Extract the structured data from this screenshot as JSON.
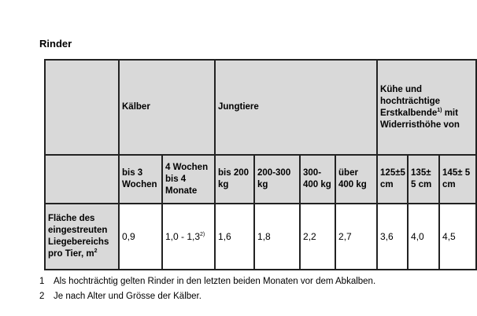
{
  "title": "Rinder",
  "header": {
    "kaelber": "Kälber",
    "jungtiere": "Jungtiere",
    "kuehe": "Kühe und hochträchtige Erstkalbende",
    "kuehe_sup": "1)",
    "kuehe_suffix": " mit Widerristhöhe von"
  },
  "subheaders": [
    "bis 3 Wochen",
    "4 Wochen bis 4 Monate",
    "bis 200 kg",
    "200-300 kg",
    "300-400 kg",
    "über 400 kg",
    "125±5 cm",
    "135± 5 cm",
    "145± 5 cm"
  ],
  "row": {
    "label": "Fläche des eingestreuten Liegebereichs pro Tier, m",
    "label_sup": "2",
    "values": [
      "0,9",
      "1,0 - 1,3",
      "1,6",
      "1,8",
      "2,2",
      "2,7",
      "3,6",
      "4,0",
      "4,5"
    ],
    "value1_sup": "2)"
  },
  "footnotes": [
    {
      "num": "1",
      "text": "Als hochträchtig gelten Rinder in den letzten beiden Monaten vor dem Abkalben."
    },
    {
      "num": "2",
      "text": "Je nach Alter und Grösse der Kälber."
    }
  ]
}
